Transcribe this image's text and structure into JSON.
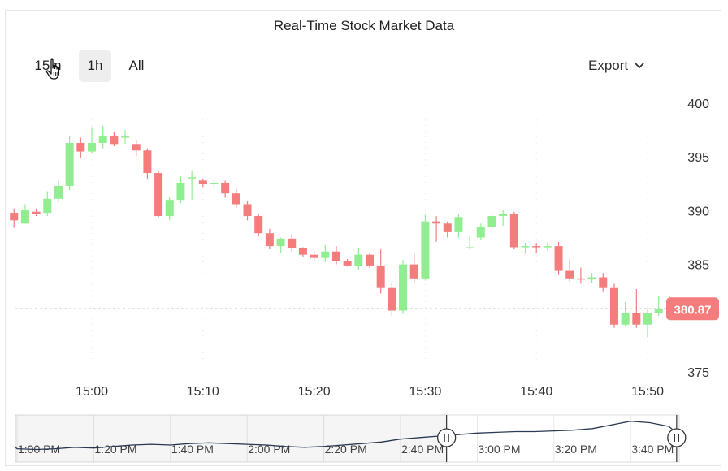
{
  "title": "Real-Time Stock Market Data",
  "range_selector": {
    "buttons": [
      "15m",
      "1h",
      "All"
    ],
    "selected": "1h"
  },
  "export": {
    "label": "Export",
    "icon": "chevron-down-icon"
  },
  "colors": {
    "up": "#90ee90",
    "down": "#f47c7c",
    "axis_text": "#333333",
    "last_price_bg": "#f47c7c",
    "navigator_line": "#2b3a55"
  },
  "chart_data": {
    "type": "candlestick",
    "x_unit": "minutes",
    "x": [
      "14:52",
      "14:53",
      "14:54",
      "14:55",
      "14:56",
      "14:57",
      "14:58",
      "14:59",
      "15:00",
      "15:01",
      "15:02",
      "15:03",
      "15:04",
      "15:05",
      "15:06",
      "15:07",
      "15:08",
      "15:09",
      "15:10",
      "15:11",
      "15:12",
      "15:13",
      "15:14",
      "15:15",
      "15:16",
      "15:17",
      "15:18",
      "15:19",
      "15:20",
      "15:21",
      "15:22",
      "15:23",
      "15:24",
      "15:25",
      "15:26",
      "15:27",
      "15:28",
      "15:29",
      "15:30",
      "15:31",
      "15:32",
      "15:33",
      "15:34",
      "15:35",
      "15:36",
      "15:37",
      "15:38",
      "15:39",
      "15:40",
      "15:41",
      "15:42",
      "15:43",
      "15:44",
      "15:45",
      "15:46",
      "15:47",
      "15:48",
      "15:49",
      "15:50",
      "15:51",
      "15:52"
    ],
    "open": [
      388.8,
      389.8,
      388.8,
      389.9,
      389.8,
      391.1,
      392.3,
      396.3,
      395.5,
      396.3,
      396.9,
      396.9,
      396.2,
      395.6,
      393.5,
      389.5,
      391.0,
      393.1,
      392.8,
      392.5,
      392.6,
      391.6,
      390.6,
      389.5,
      387.9,
      386.7,
      387.4,
      386.5,
      385.9,
      385.6,
      386.2,
      385.3,
      384.9,
      385.9,
      384.9,
      382.8,
      380.7,
      385.0,
      383.7,
      389.0,
      388.8,
      388.0,
      386.6,
      387.5,
      388.5,
      389.5,
      389.7,
      386.6,
      386.7,
      386.6,
      386.7,
      384.4,
      383.7,
      383.6,
      383.8,
      382.8,
      379.4,
      380.5,
      379.4,
      380.5,
      380.9
    ],
    "close": [
      390.6,
      389.1,
      390.1,
      389.7,
      391.1,
      392.3,
      396.3,
      395.5,
      396.3,
      396.9,
      396.2,
      396.9,
      395.6,
      393.5,
      389.5,
      391.0,
      392.6,
      393.1,
      392.5,
      392.6,
      391.6,
      390.6,
      389.5,
      387.9,
      386.7,
      387.4,
      386.5,
      385.9,
      385.6,
      386.2,
      385.3,
      384.9,
      385.9,
      384.9,
      382.8,
      380.7,
      385.0,
      383.7,
      389.0,
      388.8,
      388.0,
      389.4,
      386.6,
      388.5,
      389.5,
      389.7,
      386.6,
      386.7,
      386.6,
      386.7,
      384.4,
      383.7,
      383.6,
      383.8,
      382.8,
      379.4,
      380.5,
      379.4,
      380.5,
      380.9,
      380.9
    ],
    "high": [
      391.0,
      390.2,
      390.6,
      390.2,
      391.8,
      392.8,
      396.9,
      396.8,
      397.7,
      397.9,
      397.3,
      397.5,
      396.6,
      395.8,
      393.7,
      391.3,
      393.2,
      393.7,
      393.0,
      392.9,
      392.8,
      392.0,
      390.9,
      389.7,
      388.3,
      387.5,
      387.8,
      386.6,
      386.3,
      386.8,
      386.7,
      385.5,
      386.5,
      386.0,
      386.4,
      383.3,
      385.4,
      386.0,
      389.6,
      389.5,
      389.0,
      389.7,
      387.6,
      388.8,
      389.8,
      390.1,
      389.9,
      387.0,
      387.0,
      387.0,
      387.1,
      385.5,
      384.7,
      384.2,
      384.2,
      383.2,
      381.5,
      382.7,
      380.9,
      382.1,
      382.0
    ],
    "low": [
      388.5,
      388.4,
      388.8,
      389.5,
      389.5,
      390.8,
      391.9,
      394.9,
      395.3,
      395.8,
      396.0,
      396.2,
      395.1,
      392.9,
      389.4,
      389.1,
      390.7,
      391.0,
      392.2,
      392.0,
      391.2,
      390.3,
      389.1,
      387.6,
      386.4,
      386.1,
      386.2,
      385.7,
      385.3,
      385.2,
      385.0,
      384.8,
      384.5,
      384.7,
      382.3,
      380.2,
      380.4,
      383.3,
      383.5,
      387.1,
      387.5,
      387.5,
      386.4,
      387.3,
      388.3,
      388.6,
      386.4,
      386.0,
      386.1,
      386.3,
      384.0,
      383.4,
      383.2,
      383.3,
      382.5,
      379.1,
      379.2,
      379.1,
      378.2,
      380.2,
      380.6
    ],
    "y_axis": {
      "ylim": [
        375,
        400
      ],
      "ticks": [
        375,
        380,
        385,
        390,
        395,
        400
      ],
      "tick_labels": [
        "375",
        "",
        "385",
        "390",
        "395",
        "400"
      ],
      "side": "right"
    },
    "x_axis": {
      "tick_labels": [
        "15:00",
        "15:10",
        "15:20",
        "15:30",
        "15:40",
        "15:50"
      ]
    },
    "last_price": 380.87,
    "last_price_label": "380.87",
    "navigator": {
      "tick_labels": [
        "1:00 PM",
        "1:20 PM",
        "1:40 PM",
        "2:00 PM",
        "2:20 PM",
        "2:40 PM",
        "3:00 PM",
        "3:20 PM",
        "3:40 PM"
      ],
      "x": [
        "12:58",
        "13:00",
        "13:05",
        "13:10",
        "13:15",
        "13:20",
        "13:25",
        "13:30",
        "13:35",
        "13:40",
        "13:45",
        "13:50",
        "13:55",
        "14:00",
        "14:05",
        "14:10",
        "14:15",
        "14:20",
        "14:25",
        "14:30",
        "14:35",
        "14:40",
        "14:45",
        "14:50",
        "14:55",
        "15:00",
        "15:05",
        "15:10",
        "15:15",
        "15:20",
        "15:25",
        "15:30",
        "15:35",
        "15:40",
        "15:45",
        "15:50",
        "15:52"
      ],
      "values": [
        382.5,
        381.5,
        381.0,
        381.5,
        382.5,
        382.0,
        383.0,
        384.0,
        384.5,
        384.0,
        385.0,
        385.5,
        385.0,
        384.5,
        384.0,
        383.0,
        382.5,
        383.0,
        384.0,
        385.0,
        386.0,
        388.0,
        389.0,
        390.0,
        391.0,
        392.0,
        392.5,
        393.0,
        393.0,
        393.5,
        394.0,
        395.0,
        397.5,
        400.0,
        399.0,
        396.5,
        392.0
      ],
      "selected_range": [
        "14:52",
        "15:52"
      ]
    }
  }
}
